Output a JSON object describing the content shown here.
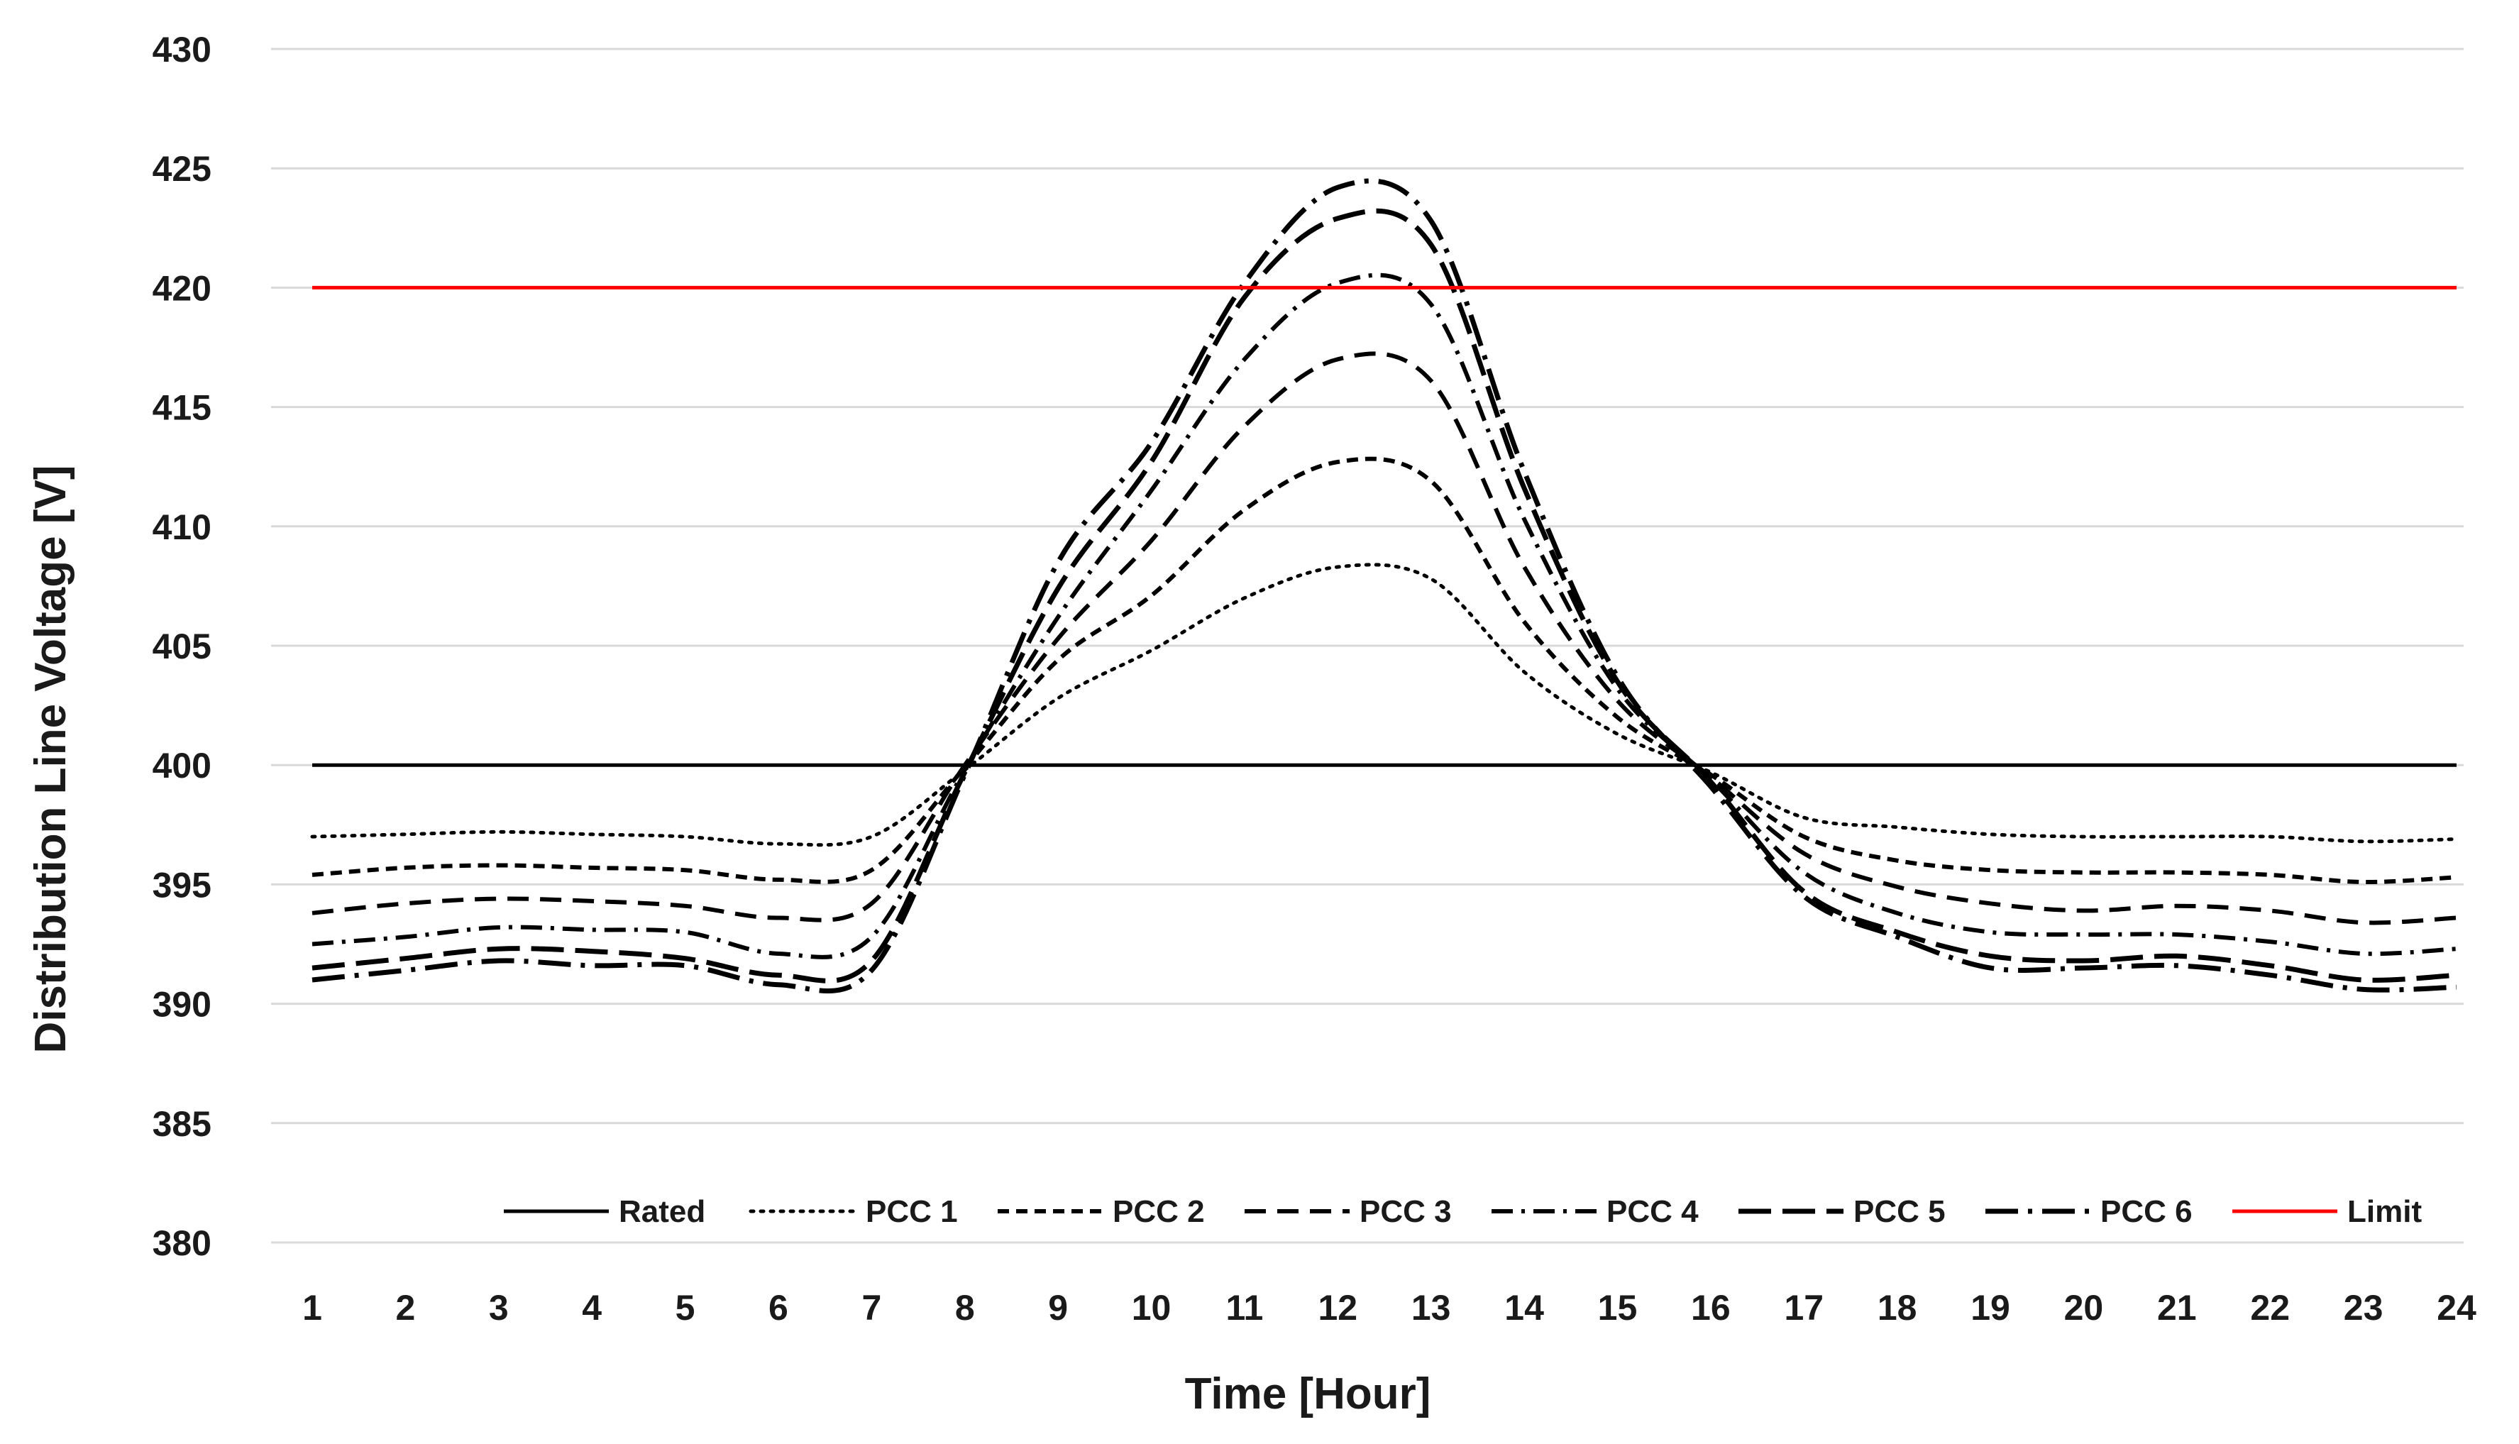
{
  "chart_data": {
    "type": "line",
    "title": "",
    "xlabel": "Time [Hour]",
    "ylabel": "Distribution Line Voltage  [V]",
    "ylim": [
      380,
      430
    ],
    "yticks": [
      380,
      385,
      390,
      395,
      400,
      405,
      410,
      415,
      420,
      425,
      430
    ],
    "x": [
      1,
      2,
      3,
      4,
      5,
      6,
      7,
      8,
      9,
      10,
      11,
      12,
      13,
      14,
      15,
      16,
      17,
      18,
      19,
      20,
      21,
      22,
      23,
      24
    ],
    "grid": true,
    "legend_position": "bottom-inside",
    "series": [
      {
        "name": "Rated",
        "color": "#000000",
        "dash": "solid",
        "values": [
          400,
          400,
          400,
          400,
          400,
          400,
          400,
          400,
          400,
          400,
          400,
          400,
          400,
          400,
          400,
          400,
          400,
          400,
          400,
          400,
          400,
          400,
          400,
          400
        ]
      },
      {
        "name": "PCC 1",
        "color": "#000000",
        "dash": "dotted",
        "values": [
          397.0,
          397.1,
          397.2,
          397.1,
          397.0,
          396.7,
          397.0,
          399.8,
          402.8,
          404.8,
          407.0,
          408.3,
          407.8,
          403.9,
          401.3,
          399.7,
          397.8,
          397.4,
          397.1,
          397.0,
          397.0,
          397.0,
          396.8,
          396.9
        ]
      },
      {
        "name": "PCC 2",
        "color": "#000000",
        "dash": "short-dash",
        "values": [
          395.4,
          395.7,
          395.8,
          395.7,
          395.6,
          395.2,
          395.6,
          399.9,
          404.4,
          407.1,
          410.7,
          412.7,
          411.9,
          406.0,
          402.0,
          399.6,
          397.0,
          396.0,
          395.6,
          395.5,
          395.5,
          395.4,
          395.1,
          395.3
        ]
      },
      {
        "name": "PCC 3",
        "color": "#000000",
        "dash": "dash",
        "values": [
          393.8,
          394.2,
          394.4,
          394.3,
          394.1,
          393.6,
          394.2,
          400.0,
          405.3,
          409.4,
          414.2,
          417.0,
          416.1,
          408.3,
          402.7,
          399.5,
          396.3,
          394.9,
          394.2,
          393.9,
          394.1,
          393.9,
          393.4,
          393.6
        ]
      },
      {
        "name": "PCC 4",
        "color": "#000000",
        "dash": "dash-dot",
        "values": [
          392.5,
          392.8,
          393.2,
          393.1,
          393.0,
          392.1,
          392.8,
          399.8,
          406.2,
          411.5,
          417.0,
          420.2,
          419.3,
          410.3,
          403.2,
          399.4,
          395.5,
          393.8,
          393.0,
          392.9,
          392.9,
          392.6,
          392.1,
          392.3
        ]
      },
      {
        "name": "PCC 5",
        "color": "#000000",
        "dash": "long-dash",
        "values": [
          391.5,
          391.9,
          392.3,
          392.2,
          391.9,
          391.2,
          391.8,
          399.7,
          407.4,
          412.7,
          419.6,
          422.9,
          421.8,
          411.6,
          403.5,
          399.3,
          394.7,
          393.0,
          392.0,
          391.8,
          392.0,
          391.6,
          391.0,
          391.2
        ]
      },
      {
        "name": "PCC 6",
        "color": "#000000",
        "dash": "long-dash-dot",
        "values": [
          391.0,
          391.4,
          391.8,
          391.6,
          391.6,
          390.8,
          391.4,
          399.6,
          408.5,
          413.5,
          420.2,
          424.2,
          422.8,
          412.3,
          403.7,
          399.1,
          394.5,
          392.8,
          391.5,
          391.5,
          391.6,
          391.2,
          390.6,
          390.7
        ]
      },
      {
        "name": "Limit",
        "color": "#ff0000",
        "dash": "solid",
        "values": [
          420,
          420,
          420,
          420,
          420,
          420,
          420,
          420,
          420,
          420,
          420,
          420,
          420,
          420,
          420,
          420,
          420,
          420,
          420,
          420,
          420,
          420,
          420,
          420
        ]
      }
    ]
  }
}
